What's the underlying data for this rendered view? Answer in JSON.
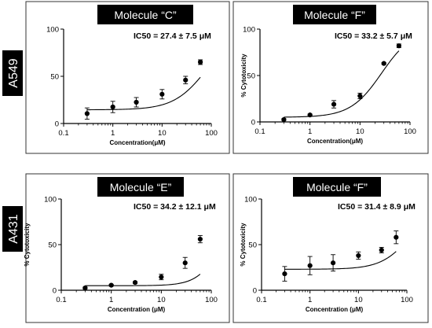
{
  "row_labels": [
    "A549",
    "A431"
  ],
  "axis_units": {
    "x_min": 0.1,
    "x_max": 100,
    "y_min": 0,
    "y_max": 100
  },
  "colors": {
    "header_bg": "#000000",
    "header_text": "#ffffff",
    "mark": "#000000",
    "frame": "#333333"
  },
  "chart_data": [
    {
      "type": "scatter",
      "title": "Molecule “C”",
      "annotation": "IC50 = 27.4 ± 7.5 μM",
      "xlabel": "Concentration(μM)",
      "ylabel": "",
      "x_scale": "log",
      "xlim": [
        0.1,
        100
      ],
      "ylim": [
        0,
        100
      ],
      "x_ticks": [
        "0.1",
        "1",
        "10",
        "100"
      ],
      "y_ticks": [
        "0",
        "50",
        "100"
      ],
      "grid": false,
      "fit": {
        "bottom": 14.5,
        "top": 100,
        "ec50": 81,
        "hill": 1.3
      },
      "series": [
        {
          "x": [
            0.3,
            1,
            3,
            10,
            30,
            60
          ],
          "y": [
            10.5,
            17.5,
            22.5,
            31,
            46,
            65
          ],
          "err": [
            6,
            6,
            5,
            5,
            4,
            2.5
          ]
        }
      ]
    },
    {
      "type": "scatter",
      "title": "Molecule “F”",
      "annotation": "IC50 = 33.2 ± 5.7 μM",
      "xlabel": "Concentration(μM)",
      "ylabel": "% Cytotoxicity",
      "x_scale": "log",
      "xlim": [
        0.1,
        100
      ],
      "ylim": [
        0,
        100
      ],
      "x_ticks": [
        "0.1",
        "1",
        "10",
        "100"
      ],
      "y_ticks": [
        "0",
        "50",
        "100"
      ],
      "grid": false,
      "fit": {
        "bottom": 5,
        "top": 100,
        "ec50": 27,
        "hill": 1.4
      },
      "series": [
        {
          "x": [
            0.3,
            1,
            3,
            10,
            30,
            60
          ],
          "y": [
            2.5,
            7.5,
            19,
            28,
            63,
            82
          ],
          "err": [
            1,
            1,
            4,
            3,
            1,
            2
          ]
        }
      ]
    },
    {
      "type": "scatter",
      "title": "Molecule “E”",
      "annotation": "IC50 = 34.2 ± 12.1 μM",
      "xlabel": "Concentration (μM)",
      "ylabel": "% Cytotoxicity",
      "x_scale": "log",
      "xlim": [
        0.1,
        100
      ],
      "ylim": [
        0,
        100
      ],
      "x_ticks": [
        "0.1",
        "1",
        "10",
        "100"
      ],
      "y_ticks": [
        "0",
        "50",
        "100"
      ],
      "grid": false,
      "fit": {
        "bottom": 5,
        "top": 100,
        "ec50": 170,
        "hill": 1.8
      },
      "series": [
        {
          "x": [
            0.3,
            1,
            3,
            10,
            30,
            60
          ],
          "y": [
            2.5,
            5.5,
            8.5,
            14.5,
            30,
            56
          ],
          "err": [
            1,
            1,
            1,
            3,
            6,
            4
          ]
        }
      ]
    },
    {
      "type": "scatter",
      "title": "Molecule “F”",
      "annotation": "IC50 = 31.4 ± 8.9 μM",
      "xlabel": "Concentration (μM)",
      "ylabel": "% Cytotoxicity",
      "x_scale": "log",
      "xlim": [
        0.1,
        100
      ],
      "ylim": [
        0,
        100
      ],
      "x_ticks": [
        "0.1",
        "1",
        "10",
        "100"
      ],
      "y_ticks": [
        "0",
        "50",
        "100"
      ],
      "grid": false,
      "fit": {
        "bottom": 23,
        "top": 100,
        "ec50": 130,
        "hill": 1.4
      },
      "series": [
        {
          "x": [
            0.3,
            1,
            3,
            10,
            30,
            60
          ],
          "y": [
            18,
            27,
            30,
            38,
            44,
            58
          ],
          "err": [
            8,
            10,
            9,
            4,
            3,
            7
          ]
        }
      ]
    }
  ]
}
